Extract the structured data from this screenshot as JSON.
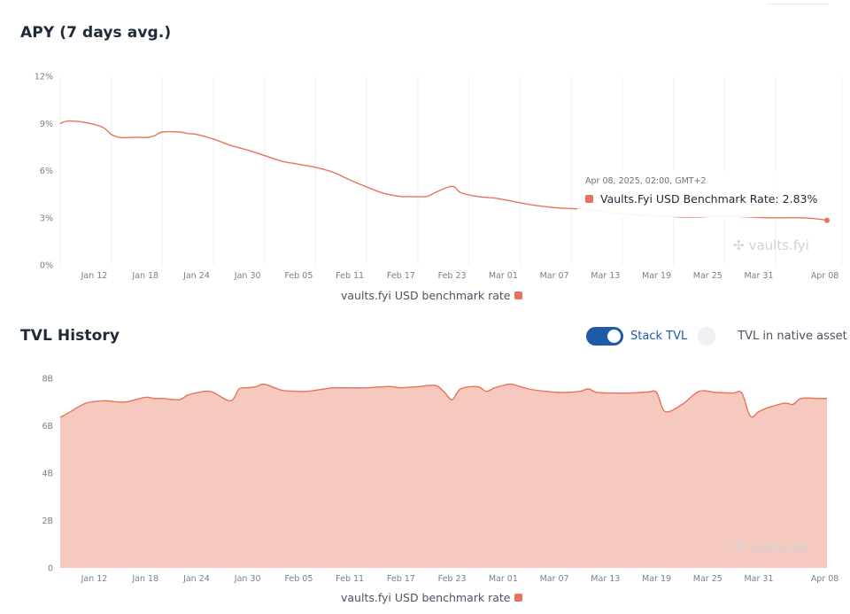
{
  "apy_section": {
    "title": "APY (7 days avg.)",
    "legend_label": "vaults.fyi USD benchmark rate",
    "tooltip": {
      "time": "Apr 08, 2025, 02:00, GMT+2",
      "series_label": "Vaults.Fyi USD Benchmark Rate:",
      "value": "2.83%"
    },
    "watermark": "vaults.fyi"
  },
  "tvl_section": {
    "title": "TVL History",
    "legend_label": "vaults.fyi USD benchmark rate",
    "toggle_stack_label": "Stack TVL",
    "toggle_native_label": "TVL in native asset",
    "stack_on": true,
    "native_on": false,
    "watermark": "vaults.fyi"
  },
  "colors": {
    "series": "#e8735a",
    "area_fill": "#f6c9bf",
    "toggle_on": "#1e5aa8"
  },
  "chart_data": [
    {
      "type": "line",
      "title": "APY (7 days avg.)",
      "x_tick_labels": [
        "Jan 12",
        "Jan 18",
        "Jan 24",
        "Jan 30",
        "Feb 05",
        "Feb 11",
        "Feb 17",
        "Feb 23",
        "Mar 01",
        "Mar 07",
        "Mar 13",
        "Mar 19",
        "Mar 25",
        "Mar 31",
        "Apr 08"
      ],
      "y_tick_labels": [
        "12%",
        "9%",
        "6%",
        "3%",
        "0%"
      ],
      "ylim": [
        0,
        12
      ],
      "x_range": [
        "2025-01-08",
        "2025-04-08"
      ],
      "grid": "vertical",
      "legend": "bottom-center",
      "series": [
        {
          "name": "vaults.fyi USD benchmark rate",
          "x": [
            "2025-01-08",
            "2025-01-09",
            "2025-01-11",
            "2025-01-13",
            "2025-01-14",
            "2025-01-15",
            "2025-01-16",
            "2025-01-17",
            "2025-01-18",
            "2025-01-19",
            "2025-01-20",
            "2025-01-22",
            "2025-01-23",
            "2025-01-24",
            "2025-01-26",
            "2025-01-28",
            "2025-01-30",
            "2025-02-01",
            "2025-02-03",
            "2025-02-05",
            "2025-02-07",
            "2025-02-09",
            "2025-02-11",
            "2025-02-13",
            "2025-02-15",
            "2025-02-17",
            "2025-02-18",
            "2025-02-20",
            "2025-02-21",
            "2025-02-23",
            "2025-02-24",
            "2025-02-26",
            "2025-02-28",
            "2025-03-02",
            "2025-03-04",
            "2025-03-06",
            "2025-03-08",
            "2025-03-10",
            "2025-03-12",
            "2025-03-14",
            "2025-03-16",
            "2025-03-18",
            "2025-03-20",
            "2025-03-22",
            "2025-03-24",
            "2025-03-26",
            "2025-03-28",
            "2025-03-30",
            "2025-04-01",
            "2025-04-03",
            "2025-04-05",
            "2025-04-07",
            "2025-04-08"
          ],
          "y": [
            9.0,
            9.15,
            9.05,
            8.75,
            8.3,
            8.1,
            8.1,
            8.12,
            8.1,
            8.2,
            8.45,
            8.45,
            8.35,
            8.3,
            8.0,
            7.6,
            7.3,
            6.95,
            6.6,
            6.4,
            6.2,
            5.9,
            5.4,
            4.95,
            4.55,
            4.35,
            4.35,
            4.35,
            4.6,
            5.0,
            4.6,
            4.35,
            4.25,
            4.05,
            3.85,
            3.7,
            3.6,
            3.55,
            3.45,
            3.3,
            3.2,
            3.15,
            3.1,
            3.05,
            3.05,
            3.1,
            3.1,
            3.05,
            3.0,
            3.0,
            3.0,
            2.92,
            2.83
          ]
        }
      ]
    },
    {
      "type": "area",
      "title": "TVL History",
      "x_tick_labels": [
        "Jan 12",
        "Jan 18",
        "Jan 24",
        "Jan 30",
        "Feb 05",
        "Feb 11",
        "Feb 17",
        "Feb 23",
        "Mar 01",
        "Mar 07",
        "Mar 13",
        "Mar 19",
        "Mar 25",
        "Mar 31",
        "Apr 08"
      ],
      "y_tick_labels": [
        "8B",
        "6B",
        "4B",
        "2B",
        "0"
      ],
      "ylim": [
        0,
        8
      ],
      "x_range": [
        "2025-01-08",
        "2025-04-08"
      ],
      "stacked": true,
      "grid": "none",
      "legend": "bottom-center",
      "series": [
        {
          "name": "vaults.fyi USD benchmark rate",
          "x": [
            "2025-01-08",
            "2025-01-09",
            "2025-01-11",
            "2025-01-13",
            "2025-01-15",
            "2025-01-16",
            "2025-01-18",
            "2025-01-19",
            "2025-01-20",
            "2025-01-22",
            "2025-01-23",
            "2025-01-25",
            "2025-01-26",
            "2025-01-28",
            "2025-01-29",
            "2025-01-30",
            "2025-01-31",
            "2025-02-01",
            "2025-02-03",
            "2025-02-05",
            "2025-02-06",
            "2025-02-08",
            "2025-02-09",
            "2025-02-11",
            "2025-02-13",
            "2025-02-15",
            "2025-02-16",
            "2025-02-17",
            "2025-02-19",
            "2025-02-21",
            "2025-02-22",
            "2025-02-23",
            "2025-02-24",
            "2025-02-26",
            "2025-02-27",
            "2025-02-28",
            "2025-03-01",
            "2025-03-02",
            "2025-03-04",
            "2025-03-06",
            "2025-03-08",
            "2025-03-10",
            "2025-03-11",
            "2025-03-12",
            "2025-03-14",
            "2025-03-16",
            "2025-03-18",
            "2025-03-19",
            "2025-03-20",
            "2025-03-22",
            "2025-03-24",
            "2025-03-26",
            "2025-03-28",
            "2025-03-29",
            "2025-03-30",
            "2025-03-31",
            "2025-04-01",
            "2025-04-03",
            "2025-04-04",
            "2025-04-05",
            "2025-04-07",
            "2025-04-08"
          ],
          "y": [
            6.35,
            6.55,
            6.95,
            7.05,
            7.0,
            7.02,
            7.2,
            7.15,
            7.15,
            7.1,
            7.3,
            7.45,
            7.4,
            7.05,
            7.55,
            7.6,
            7.65,
            7.75,
            7.5,
            7.45,
            7.45,
            7.55,
            7.6,
            7.6,
            7.6,
            7.65,
            7.65,
            7.6,
            7.65,
            7.7,
            7.45,
            7.1,
            7.55,
            7.65,
            7.45,
            7.6,
            7.7,
            7.75,
            7.55,
            7.45,
            7.4,
            7.45,
            7.55,
            7.4,
            7.38,
            7.38,
            7.42,
            7.4,
            6.6,
            6.9,
            7.45,
            7.4,
            7.38,
            7.38,
            6.4,
            6.6,
            6.75,
            6.95,
            6.9,
            7.15,
            7.15,
            7.15
          ]
        }
      ]
    }
  ]
}
